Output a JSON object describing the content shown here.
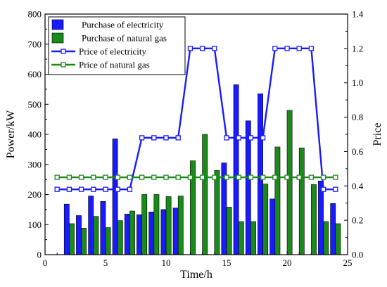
{
  "chart_data": {
    "type": "bar",
    "title": "",
    "xlabel": "Time/h",
    "ylabel": "Power/kW",
    "y2label": "Price",
    "xlim": [
      0,
      25
    ],
    "ylim": [
      0,
      800
    ],
    "y2lim": [
      0,
      1.4
    ],
    "xticks": [
      "0",
      "5",
      "10",
      "15",
      "20",
      "25"
    ],
    "yticks": [
      "0",
      "100",
      "200",
      "300",
      "400",
      "500",
      "600",
      "700",
      "800"
    ],
    "y2ticks": [
      "0.0",
      "0.2",
      "0.4",
      "0.6",
      "0.8",
      "1.0",
      "1.2",
      "1.4"
    ],
    "x": [
      2,
      3,
      4,
      5,
      6,
      7,
      8,
      9,
      10,
      11,
      12,
      13,
      14,
      15,
      16,
      17,
      18,
      19,
      20,
      21,
      22,
      23,
      24
    ],
    "series": [
      {
        "name": "Purchase of electricity",
        "type": "bar",
        "axis": "left",
        "color": "#1a1aff",
        "x": [
          2,
          3,
          4,
          5,
          6,
          7,
          8,
          9,
          10,
          11,
          12,
          13,
          14,
          15,
          16,
          17,
          18,
          19,
          20,
          21,
          22,
          23,
          24
        ],
        "values": [
          168,
          130,
          195,
          177,
          385,
          135,
          133,
          142,
          150,
          155,
          0,
          0,
          0,
          305,
          565,
          445,
          535,
          185,
          0,
          0,
          0,
          245,
          170
        ]
      },
      {
        "name": "Purchase of natural gas",
        "type": "bar",
        "axis": "left",
        "color": "#1a8a1a",
        "x": [
          2,
          3,
          4,
          5,
          6,
          7,
          8,
          9,
          10,
          11,
          12,
          13,
          14,
          15,
          16,
          17,
          18,
          19,
          20,
          21,
          22,
          23,
          24
        ],
        "values": [
          103,
          88,
          127,
          90,
          113,
          145,
          200,
          200,
          193,
          195,
          312,
          400,
          280,
          158,
          110,
          110,
          235,
          358,
          480,
          355,
          233,
          110,
          103
        ]
      },
      {
        "name": "Price of electricity",
        "type": "line",
        "axis": "right",
        "color": "#1a1aff",
        "x": [
          1,
          2,
          3,
          4,
          5,
          6,
          7,
          8,
          9,
          10,
          11,
          12,
          13,
          14,
          15,
          16,
          17,
          18,
          19,
          20,
          21,
          22,
          23,
          24
        ],
        "values": [
          0.38,
          0.38,
          0.38,
          0.38,
          0.38,
          0.38,
          0.38,
          0.68,
          0.68,
          0.68,
          0.68,
          1.2,
          1.2,
          1.2,
          0.68,
          0.68,
          0.68,
          0.68,
          1.2,
          1.2,
          1.2,
          1.2,
          0.38,
          0.38
        ]
      },
      {
        "name": "Price of natural gas",
        "type": "line",
        "axis": "right",
        "color": "#1a8a1a",
        "x": [
          1,
          2,
          3,
          4,
          5,
          6,
          7,
          8,
          9,
          10,
          11,
          12,
          13,
          14,
          15,
          16,
          17,
          18,
          19,
          20,
          21,
          22,
          23,
          24
        ],
        "values": [
          0.45,
          0.45,
          0.45,
          0.45,
          0.45,
          0.45,
          0.45,
          0.45,
          0.45,
          0.45,
          0.45,
          0.45,
          0.45,
          0.45,
          0.45,
          0.45,
          0.45,
          0.45,
          0.45,
          0.45,
          0.45,
          0.45,
          0.45,
          0.45
        ]
      }
    ],
    "grid": false,
    "legend_position": "top-left"
  }
}
